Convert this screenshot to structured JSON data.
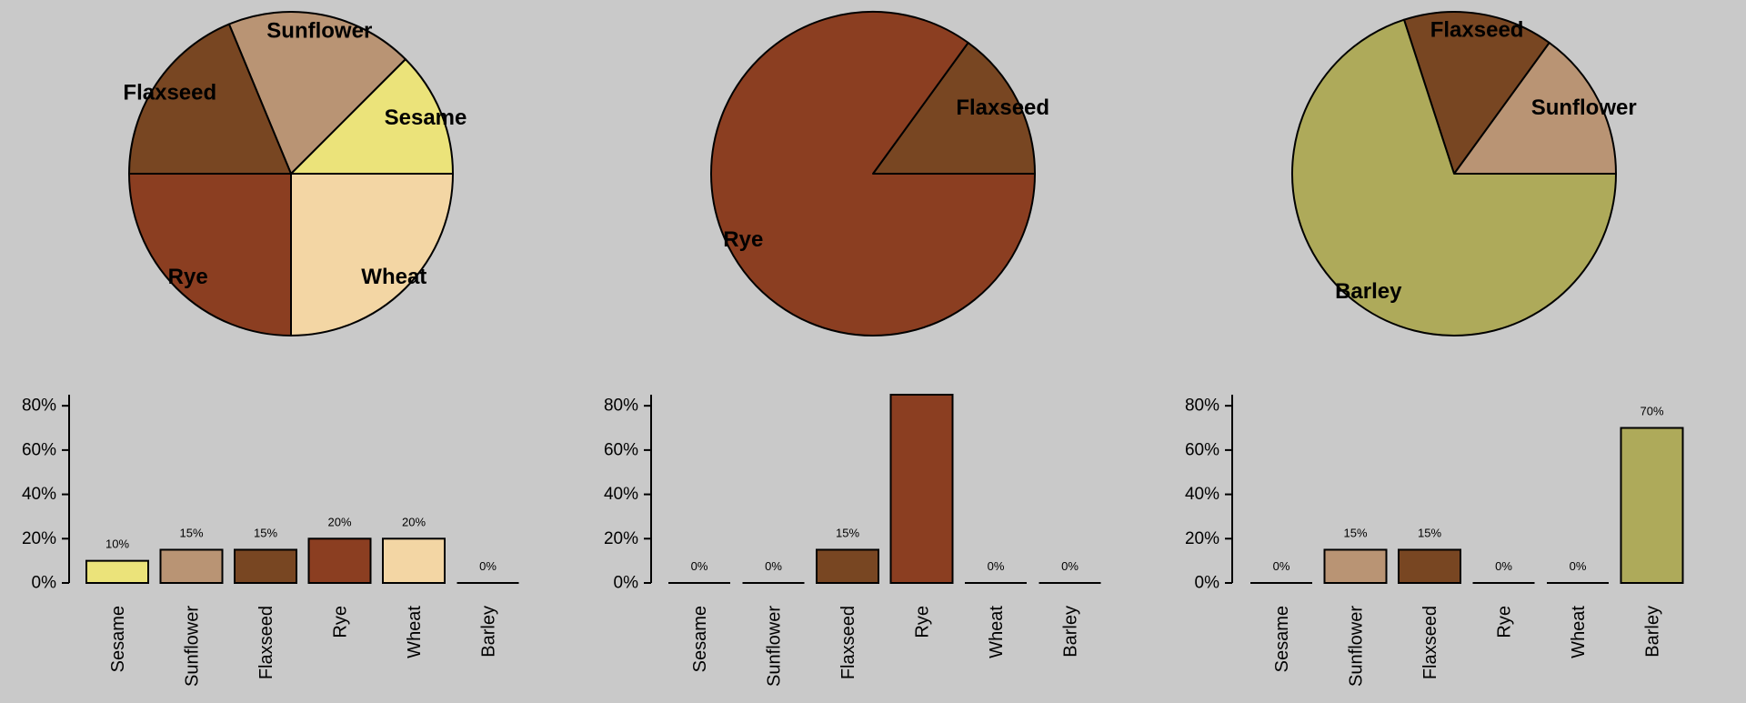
{
  "palette": {
    "background": "#c9c9c9",
    "Sesame": "#ebe37a",
    "Sunflower": "#b99474",
    "Flaxseed": "#784622",
    "Rye": "#8b3e21",
    "Wheat": "#f3d6a4",
    "Barley": "#aeaa5a"
  },
  "chart_data": [
    {
      "type": "pie",
      "slices": [
        {
          "label": "Sesame",
          "value": 10
        },
        {
          "label": "Sunflower",
          "value": 15
        },
        {
          "label": "Flaxseed",
          "value": 15
        },
        {
          "label": "Rye",
          "value": 20
        },
        {
          "label": "Wheat",
          "value": 20
        }
      ]
    },
    {
      "type": "pie",
      "slices": [
        {
          "label": "Flaxseed",
          "value": 15
        },
        {
          "label": "Rye",
          "value": 85
        }
      ]
    },
    {
      "type": "pie",
      "slices": [
        {
          "label": "Sunflower",
          "value": 15
        },
        {
          "label": "Flaxseed",
          "value": 15
        },
        {
          "label": "Barley",
          "value": 70
        }
      ]
    },
    {
      "type": "bar",
      "categories": [
        "Sesame",
        "Sunflower",
        "Flaxseed",
        "Rye",
        "Wheat",
        "Barley"
      ],
      "values": [
        10,
        15,
        15,
        20,
        20,
        0
      ],
      "value_labels": [
        "10%",
        "15%",
        "15%",
        "20%",
        "20%",
        "0%"
      ],
      "yticks": [
        "0%",
        "20%",
        "40%",
        "60%",
        "80%"
      ],
      "ylim": [
        0,
        85
      ]
    },
    {
      "type": "bar",
      "categories": [
        "Sesame",
        "Sunflower",
        "Flaxseed",
        "Rye",
        "Wheat",
        "Barley"
      ],
      "values": [
        0,
        0,
        15,
        85,
        0,
        0
      ],
      "value_labels": [
        "0%",
        "0%",
        "15%",
        "",
        "0%",
        "0%"
      ],
      "yticks": [
        "0%",
        "20%",
        "40%",
        "60%",
        "80%"
      ],
      "ylim": [
        0,
        85
      ]
    },
    {
      "type": "bar",
      "categories": [
        "Sesame",
        "Sunflower",
        "Flaxseed",
        "Rye",
        "Wheat",
        "Barley"
      ],
      "values": [
        0,
        15,
        15,
        0,
        0,
        70
      ],
      "value_labels": [
        "0%",
        "15%",
        "15%",
        "0%",
        "0%",
        "70%"
      ],
      "yticks": [
        "0%",
        "20%",
        "40%",
        "60%",
        "80%"
      ],
      "ylim": [
        0,
        85
      ]
    }
  ]
}
